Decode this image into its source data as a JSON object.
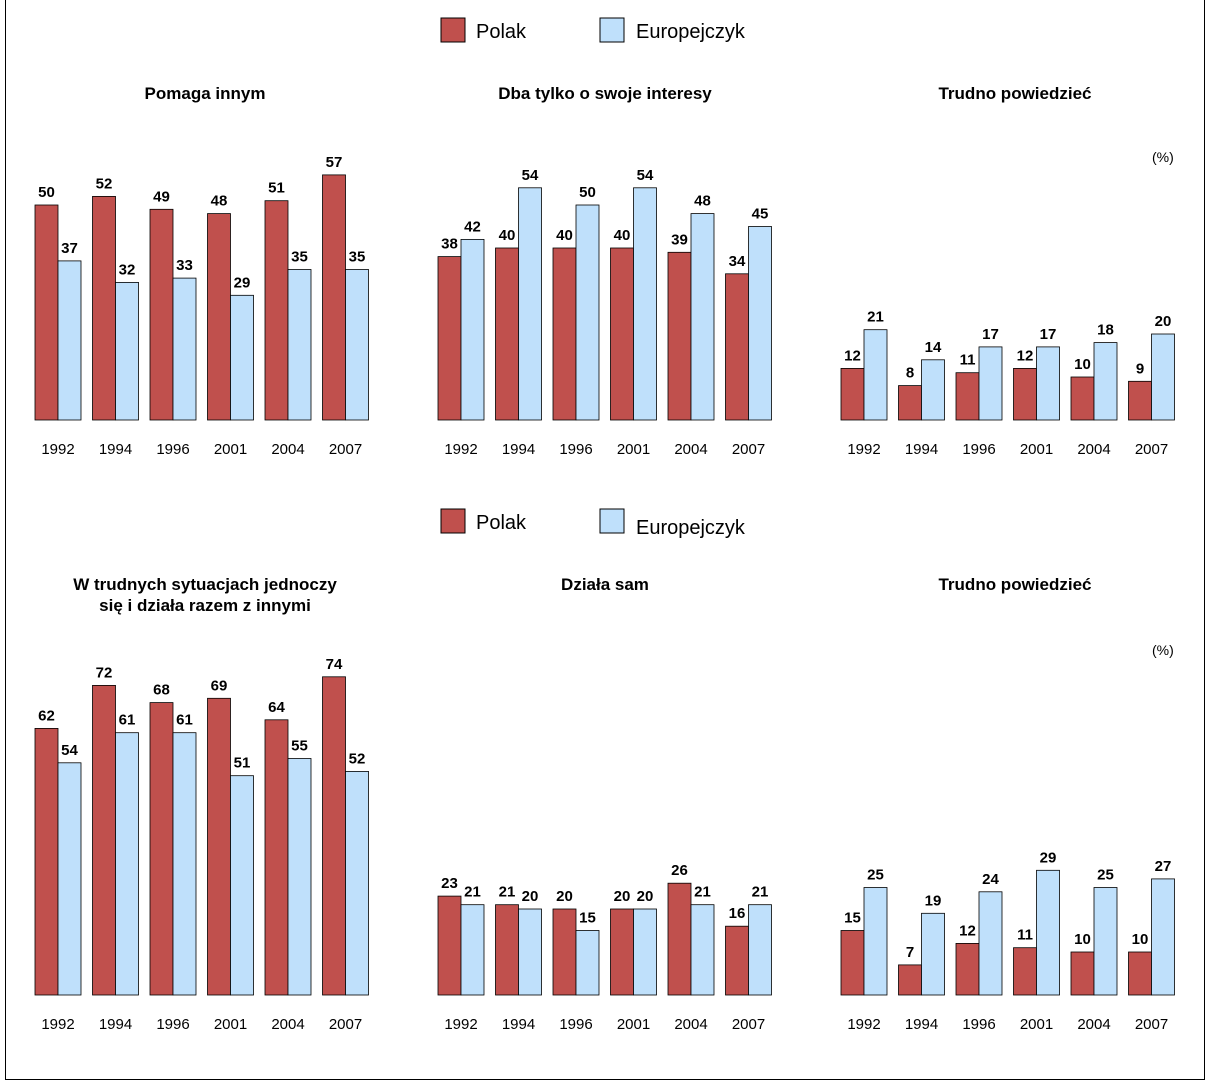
{
  "legend": {
    "series1": "Polak",
    "series2": "Europejczyk",
    "color1": "#c0504d",
    "color2": "#bfe0fb"
  },
  "unit_label": "(%)",
  "chart_data": [
    {
      "type": "bar",
      "title": "Pomaga innym",
      "categories": [
        "1992",
        "1994",
        "1996",
        "2001",
        "2004",
        "2007"
      ],
      "series": [
        {
          "name": "Polak",
          "values": [
            50,
            52,
            49,
            48,
            51,
            57
          ]
        },
        {
          "name": "Europejczyk",
          "values": [
            37,
            32,
            33,
            29,
            35,
            35
          ]
        }
      ]
    },
    {
      "type": "bar",
      "title": "Dba tylko o swoje interesy",
      "categories": [
        "1992",
        "1994",
        "1996",
        "2001",
        "2004",
        "2007"
      ],
      "series": [
        {
          "name": "Polak",
          "values": [
            38,
            40,
            40,
            40,
            39,
            34
          ]
        },
        {
          "name": "Europejczyk",
          "values": [
            42,
            54,
            50,
            54,
            48,
            45
          ]
        }
      ]
    },
    {
      "type": "bar",
      "title": "Trudno powiedzieć",
      "unit": "(%)",
      "categories": [
        "1992",
        "1994",
        "1996",
        "2001",
        "2004",
        "2007"
      ],
      "series": [
        {
          "name": "Polak",
          "values": [
            12,
            8,
            11,
            12,
            10,
            9
          ]
        },
        {
          "name": "Europejczyk",
          "values": [
            21,
            14,
            17,
            17,
            18,
            20
          ]
        }
      ]
    },
    {
      "type": "bar",
      "title": "W trudnych sytuacjach jednoczy się i działa razem z innymi",
      "title_lines": [
        "W trudnych sytuacjach jednoczy",
        "się i działa razem z innymi"
      ],
      "categories": [
        "1992",
        "1994",
        "1996",
        "2001",
        "2004",
        "2007"
      ],
      "series": [
        {
          "name": "Polak",
          "values": [
            62,
            72,
            68,
            69,
            64,
            74
          ]
        },
        {
          "name": "Europejczyk",
          "values": [
            54,
            61,
            61,
            51,
            55,
            52
          ]
        }
      ]
    },
    {
      "type": "bar",
      "title": "Działa sam",
      "categories": [
        "1992",
        "1994",
        "1996",
        "2001",
        "2004",
        "2007"
      ],
      "series": [
        {
          "name": "Polak",
          "values": [
            23,
            21,
            20,
            20,
            26,
            16
          ]
        },
        {
          "name": "Europejczyk",
          "values": [
            21,
            20,
            15,
            20,
            21,
            21
          ]
        }
      ]
    },
    {
      "type": "bar",
      "title": "Trudno powiedzieć",
      "unit": "(%)",
      "categories": [
        "1992",
        "1994",
        "1996",
        "2001",
        "2004",
        "2007"
      ],
      "series": [
        {
          "name": "Polak",
          "values": [
            15,
            7,
            12,
            11,
            10,
            10
          ]
        },
        {
          "name": "Europejczyk",
          "values": [
            25,
            19,
            24,
            29,
            25,
            27
          ]
        }
      ]
    }
  ]
}
